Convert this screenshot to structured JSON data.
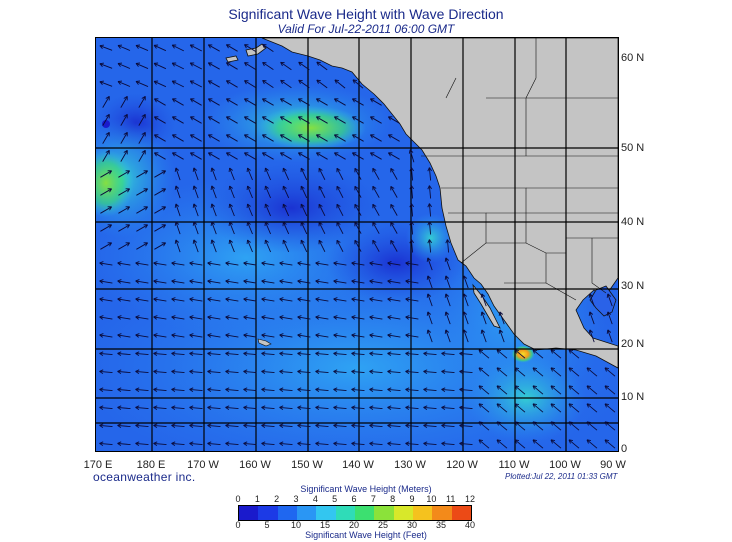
{
  "title": "Significant Wave Height with Wave Direction",
  "subtitle": "Valid For Jul-22-2011 06:00 GMT",
  "lat_labels": [
    "60 N",
    "50 N",
    "40 N",
    "30 N",
    "20 N",
    "10 N",
    "0"
  ],
  "lon_labels": [
    "170 E",
    "180 E",
    "170 W",
    "160 W",
    "150 W",
    "140 W",
    "130 W",
    "120 W",
    "110 W",
    "100 W",
    "90 W"
  ],
  "brand": "oceanweather inc.",
  "plotted": "Plotted:Jul 22, 2011 01:33 GMT",
  "legend": {
    "meters_title": "Significant Wave Height (Meters)",
    "feet_title": "Significant Wave Height (Feet)",
    "meters_ticks": [
      "0",
      "1",
      "2",
      "3",
      "4",
      "5",
      "6",
      "7",
      "8",
      "9",
      "10",
      "11",
      "12"
    ],
    "feet_ticks": [
      "0",
      "5",
      "10",
      "15",
      "20",
      "25",
      "30",
      "35",
      "40"
    ],
    "colors": [
      "#1a1acc",
      "#1c3ae6",
      "#1f67f0",
      "#2a96f4",
      "#33c6f0",
      "#2fdcb8",
      "#3ce070",
      "#8be23a",
      "#d8e82a",
      "#f5c21e",
      "#f38a1a",
      "#ec4a16"
    ]
  },
  "colors": {
    "ocean_base": "#2a62e8",
    "land": "#c4c4c4",
    "grid": "#000000",
    "arrow": "#0a0a3a",
    "title": "#1a2a8a"
  }
}
